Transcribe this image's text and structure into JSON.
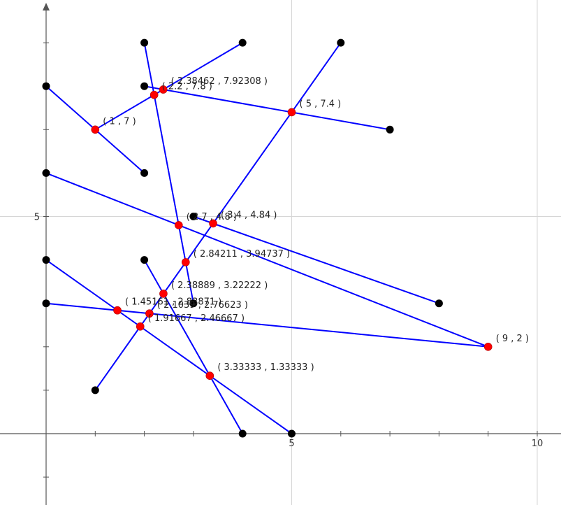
{
  "chart_data": {
    "type": "scatter",
    "title": "",
    "xlabel": "",
    "ylabel": "",
    "xlim": [
      -0.93,
      10.48
    ],
    "ylim": [
      -1.63,
      10.03
    ],
    "grid": true,
    "x_ticks": [
      {
        "value": 5,
        "label": "5"
      },
      {
        "value": 10,
        "label": "10"
      }
    ],
    "y_ticks": [
      {
        "value": 5,
        "label": "5"
      }
    ],
    "segments": [
      {
        "from": [
          0,
          8
        ],
        "to": [
          2,
          6
        ]
      },
      {
        "from": [
          1,
          7
        ],
        "to": [
          4,
          9
        ]
      },
      {
        "from": [
          2,
          8
        ],
        "to": [
          7,
          7
        ]
      },
      {
        "from": [
          2,
          9
        ],
        "to": [
          3,
          3
        ]
      },
      {
        "from": [
          6,
          9
        ],
        "to": [
          1,
          1
        ]
      },
      {
        "from": [
          0,
          6
        ],
        "to": [
          9,
          2
        ]
      },
      {
        "from": [
          3,
          5
        ],
        "to": [
          8,
          3
        ]
      },
      {
        "from": [
          2,
          4
        ],
        "to": [
          4,
          0
        ]
      },
      {
        "from": [
          0,
          4
        ],
        "to": [
          5,
          0
        ]
      },
      {
        "from": [
          0,
          3
        ],
        "to": [
          9,
          2
        ]
      }
    ],
    "endpoints": [
      {
        "x": 0,
        "y": 8
      },
      {
        "x": 2,
        "y": 6
      },
      {
        "x": 4,
        "y": 9
      },
      {
        "x": 2,
        "y": 8
      },
      {
        "x": 7,
        "y": 7
      },
      {
        "x": 2,
        "y": 9
      },
      {
        "x": 3,
        "y": 3
      },
      {
        "x": 6,
        "y": 9
      },
      {
        "x": 1,
        "y": 1
      },
      {
        "x": 0,
        "y": 6
      },
      {
        "x": 3,
        "y": 5
      },
      {
        "x": 8,
        "y": 3
      },
      {
        "x": 2,
        "y": 4
      },
      {
        "x": 4,
        "y": 0
      },
      {
        "x": 0,
        "y": 4
      },
      {
        "x": 5,
        "y": 0
      },
      {
        "x": 0,
        "y": 3
      }
    ],
    "intersections": [
      {
        "x": 2.38462,
        "y": 7.92308,
        "label": "( 2.38462 , 7.92308 )",
        "anchor": "ur"
      },
      {
        "x": 2.2,
        "y": 7.8,
        "label": "( 2.2 , 7.8 )",
        "anchor": "ur"
      },
      {
        "x": 1,
        "y": 7,
        "label": "( 1 , 7 )",
        "anchor": "ur"
      },
      {
        "x": 5,
        "y": 7.4,
        "label": "( 5 , 7.4 )",
        "anchor": "ur"
      },
      {
        "x": 3.4,
        "y": 4.84,
        "label": "( 3.4 , 4.84 )",
        "anchor": "ur"
      },
      {
        "x": 2.7,
        "y": 4.8,
        "label": "( 2.7 , 4.8 )",
        "anchor": "ur"
      },
      {
        "x": 2.84211,
        "y": 3.94737,
        "label": "( 2.84211 , 3.94737 )",
        "anchor": "ur"
      },
      {
        "x": 2.38889,
        "y": 3.22222,
        "label": "( 2.38889 , 3.22222 )",
        "anchor": "ur"
      },
      {
        "x": 1.45161,
        "y": 2.83871,
        "label": "( 1.45161 , 2.83871 )",
        "anchor": "ur"
      },
      {
        "x": 2.1039,
        "y": 2.76623,
        "label": "( 2.1039 , 2.76623 )",
        "anchor": "ur"
      },
      {
        "x": 1.91667,
        "y": 2.46667,
        "label": "( 1.91667 , 2.46667 )",
        "anchor": "ur"
      },
      {
        "x": 9,
        "y": 2,
        "label": "( 9 , 2 )",
        "anchor": "ur"
      },
      {
        "x": 3.33333,
        "y": 1.33333,
        "label": "( 3.33333 , 1.33333 )",
        "anchor": "ur"
      }
    ]
  },
  "colors": {
    "segment": "#0000ff",
    "endpoint": "#000000",
    "intersection": "#ff0000",
    "axis": "#555555",
    "grid": "#d6d6d6"
  }
}
